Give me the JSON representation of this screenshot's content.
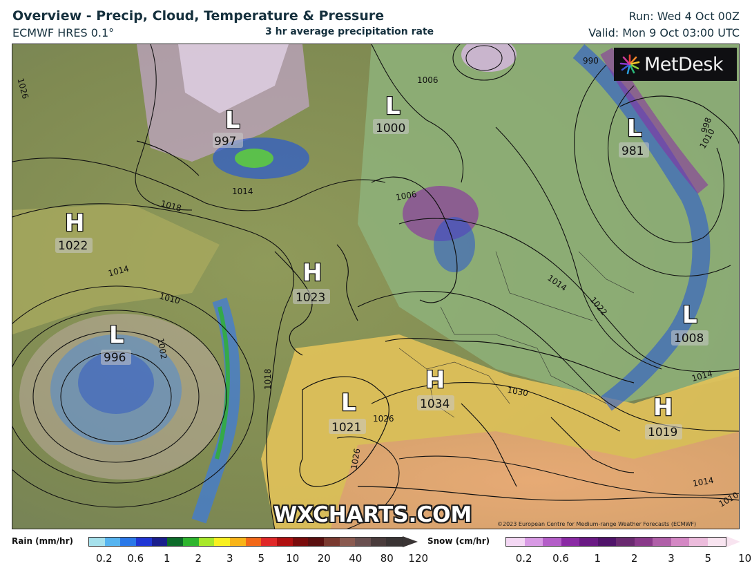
{
  "header": {
    "title": "Overview - Precip, Cloud, Temperature & Pressure",
    "model": "ECMWF HRES 0.1°",
    "subtitle": "3 hr average precipitation rate",
    "run": "Run: Wed 4 Oct 00Z",
    "valid": "Valid: Mon 9 Oct 03:00 UTC"
  },
  "logo": {
    "text": "MetDesk",
    "icon": "metdesk-starburst-icon"
  },
  "watermark": "WXCHARTS.COM",
  "copyright": "©2023 European Centre for Medium-range Weather Forecasts (ECMWF)",
  "pressure_centers": [
    {
      "type": "L",
      "value": "997"
    },
    {
      "type": "L",
      "value": "1000"
    },
    {
      "type": "L",
      "value": "981"
    },
    {
      "type": "H",
      "value": "1022"
    },
    {
      "type": "H",
      "value": "1023"
    },
    {
      "type": "L",
      "value": "996"
    },
    {
      "type": "L",
      "value": "1008"
    },
    {
      "type": "H",
      "value": "1034"
    },
    {
      "type": "L",
      "value": "1021"
    },
    {
      "type": "H",
      "value": "1019"
    }
  ],
  "isobar_labels": [
    "1014",
    "1018",
    "1006",
    "990",
    "1014",
    "1010",
    "1018",
    "1026",
    "1026",
    "1022",
    "1014",
    "1030",
    "998",
    "1014",
    "1010",
    "1026",
    "1006",
    "1002",
    "1014",
    "1010"
  ],
  "legend": {
    "rain": {
      "label": "Rain (mm/hr)",
      "ticks": [
        "0.2",
        "0.6",
        "1",
        "2",
        "3",
        "5",
        "10",
        "20",
        "40",
        "80",
        "120"
      ],
      "colors": [
        "#a6e1ec",
        "#56b4f0",
        "#2a78e8",
        "#2036d4",
        "#1a1f8c",
        "#0d6b2a",
        "#2eb52e",
        "#a8e82a",
        "#f8f020",
        "#f8b418",
        "#f26818",
        "#e02828",
        "#b01010",
        "#7a0c0c",
        "#5a1010",
        "#7a3a30",
        "#8a5a50",
        "#6a5050",
        "#4a3c3c",
        "#3a3434"
      ]
    },
    "snow": {
      "label": "Snow (cm/hr)",
      "ticks": [
        "0.2",
        "0.6",
        "1",
        "2",
        "3",
        "5",
        "10"
      ],
      "colors": [
        "#f4d8f4",
        "#d89ae4",
        "#b45ec8",
        "#8a2aa4",
        "#6a1a84",
        "#50146a",
        "#6a2a70",
        "#8a3a8a",
        "#b060a8",
        "#d488c4",
        "#ecbcdc",
        "#f8e4f0"
      ]
    }
  }
}
